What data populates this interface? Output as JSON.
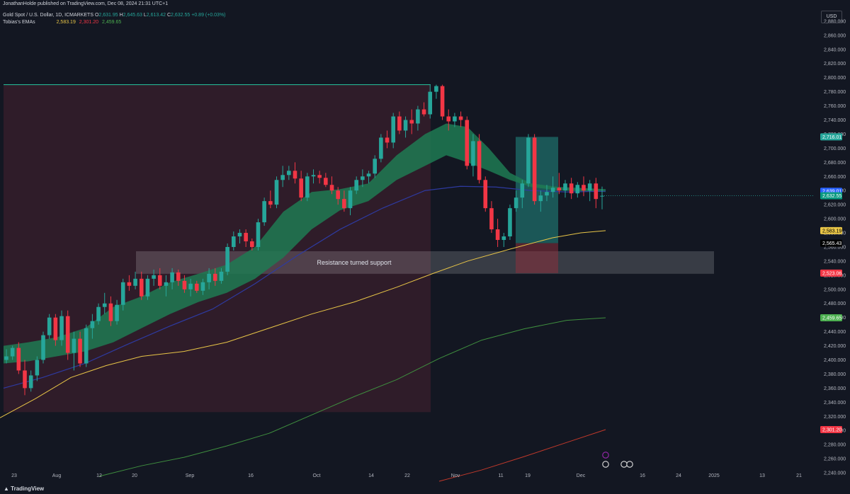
{
  "header": {
    "published_by": "JonathanHolde published on TradingView.com, Dec 08, 2024 21:31 UTC+1",
    "symbol_line": "Gold Spot / U.S. Dollar, 1D, ICMARKETS",
    "ohlc": {
      "o_label": "O",
      "o": "2,631.95",
      "h_label": "H",
      "h": "2,645.63",
      "l_label": "L",
      "l": "2,613.42",
      "c_label": "C",
      "c": "2,632.55",
      "change": "+0.89 (+0.03%)"
    },
    "indicator_name": "Tobias&#039;s EMAs",
    "indicator_values": [
      "2,583.19",
      "2,301.20",
      "2,459.65"
    ]
  },
  "currency_label": "USD",
  "footer_brand": "TradingView",
  "colors": {
    "background": "#131722",
    "up": "#26a69a",
    "down": "#f23645",
    "upper_band": "#1f7a52",
    "ema_blue": "#2a2e8a",
    "ema_yellow": "#e8c547",
    "ema_green": "#3f8f3f",
    "ema_red": "#c0392b",
    "range_pink": "#3a1f2c",
    "box_teal": "#26a69a",
    "box_red": "#8a2f3c",
    "label_green": "#089981"
  },
  "chart_data": {
    "type": "candlestick",
    "title": "Gold Spot / U.S. Dollar, 1D, ICMARKETS",
    "ylim": [
      2226,
      2905
    ],
    "y_ticks": [
      2240,
      2260,
      2280,
      2300,
      2320,
      2340,
      2360,
      2380,
      2400,
      2420,
      2440,
      2460,
      2480,
      2500,
      2520,
      2540,
      2560,
      2580,
      2600,
      2620,
      2640,
      2660,
      2680,
      2700,
      2720,
      2740,
      2760,
      2780,
      2800,
      2820,
      2840,
      2860,
      2880
    ],
    "x_ticks": [
      "23",
      "Aug",
      "12",
      "20",
      "Sep",
      "16",
      "Oct",
      "14",
      "22",
      "Nov",
      "11",
      "19",
      "Dec",
      "16",
      "24",
      "2025",
      "13",
      "21"
    ],
    "candles": [
      [
        2400,
        2415,
        2395,
        2405
      ],
      [
        2405,
        2420,
        2400,
        2417
      ],
      [
        2417,
        2425,
        2380,
        2385
      ],
      [
        2385,
        2400,
        2350,
        2360
      ],
      [
        2360,
        2385,
        2355,
        2378
      ],
      [
        2378,
        2405,
        2370,
        2400
      ],
      [
        2400,
        2440,
        2395,
        2435
      ],
      [
        2435,
        2465,
        2430,
        2460
      ],
      [
        2460,
        2465,
        2420,
        2428
      ],
      [
        2428,
        2470,
        2420,
        2462
      ],
      [
        2462,
        2470,
        2400,
        2410
      ],
      [
        2410,
        2440,
        2385,
        2430
      ],
      [
        2430,
        2440,
        2390,
        2395
      ],
      [
        2395,
        2450,
        2390,
        2445
      ],
      [
        2445,
        2465,
        2430,
        2455
      ],
      [
        2455,
        2480,
        2450,
        2475
      ],
      [
        2475,
        2495,
        2465,
        2480
      ],
      [
        2480,
        2490,
        2448,
        2455
      ],
      [
        2455,
        2485,
        2450,
        2478
      ],
      [
        2478,
        2515,
        2470,
        2510
      ],
      [
        2510,
        2520,
        2498,
        2505
      ],
      [
        2505,
        2525,
        2500,
        2515
      ],
      [
        2515,
        2525,
        2485,
        2490
      ],
      [
        2490,
        2520,
        2485,
        2515
      ],
      [
        2515,
        2528,
        2505,
        2520
      ],
      [
        2520,
        2530,
        2500,
        2505
      ],
      [
        2505,
        2520,
        2490,
        2510
      ],
      [
        2510,
        2530,
        2500,
        2524
      ],
      [
        2524,
        2528,
        2505,
        2512
      ],
      [
        2512,
        2520,
        2495,
        2500
      ],
      [
        2500,
        2515,
        2490,
        2508
      ],
      [
        2508,
        2512,
        2495,
        2498
      ],
      [
        2498,
        2515,
        2492,
        2510
      ],
      [
        2510,
        2530,
        2500,
        2522
      ],
      [
        2522,
        2530,
        2505,
        2512
      ],
      [
        2512,
        2530,
        2508,
        2525
      ],
      [
        2525,
        2565,
        2520,
        2560
      ],
      [
        2560,
        2582,
        2555,
        2575
      ],
      [
        2575,
        2585,
        2565,
        2580
      ],
      [
        2580,
        2585,
        2560,
        2568
      ],
      [
        2568,
        2572,
        2555,
        2560
      ],
      [
        2560,
        2600,
        2555,
        2595
      ],
      [
        2595,
        2630,
        2590,
        2625
      ],
      [
        2625,
        2640,
        2615,
        2620
      ],
      [
        2620,
        2660,
        2615,
        2655
      ],
      [
        2655,
        2675,
        2645,
        2662
      ],
      [
        2662,
        2675,
        2655,
        2668
      ],
      [
        2668,
        2680,
        2650,
        2657
      ],
      [
        2657,
        2668,
        2625,
        2630
      ],
      [
        2630,
        2665,
        2625,
        2660
      ],
      [
        2660,
        2670,
        2650,
        2662
      ],
      [
        2662,
        2668,
        2650,
        2658
      ],
      [
        2658,
        2665,
        2645,
        2648
      ],
      [
        2648,
        2660,
        2635,
        2640
      ],
      [
        2640,
        2645,
        2620,
        2628
      ],
      [
        2628,
        2640,
        2610,
        2615
      ],
      [
        2615,
        2645,
        2605,
        2640
      ],
      [
        2640,
        2660,
        2635,
        2655
      ],
      [
        2655,
        2670,
        2645,
        2660
      ],
      [
        2660,
        2668,
        2650,
        2664
      ],
      [
        2664,
        2690,
        2658,
        2685
      ],
      [
        2685,
        2720,
        2680,
        2715
      ],
      [
        2715,
        2725,
        2700,
        2708
      ],
      [
        2708,
        2750,
        2700,
        2745
      ],
      [
        2745,
        2752,
        2720,
        2725
      ],
      [
        2725,
        2745,
        2715,
        2740
      ],
      [
        2740,
        2755,
        2720,
        2735
      ],
      [
        2735,
        2760,
        2725,
        2755
      ],
      [
        2755,
        2765,
        2745,
        2748
      ],
      [
        2748,
        2790,
        2742,
        2780
      ],
      [
        2780,
        2790,
        2770,
        2788
      ],
      [
        2788,
        2790,
        2740,
        2745
      ],
      [
        2745,
        2755,
        2725,
        2738
      ],
      [
        2738,
        2750,
        2730,
        2745
      ],
      [
        2745,
        2752,
        2730,
        2740
      ],
      [
        2740,
        2745,
        2670,
        2675
      ],
      [
        2675,
        2720,
        2660,
        2710
      ],
      [
        2710,
        2720,
        2650,
        2655
      ],
      [
        2655,
        2660,
        2610,
        2615
      ],
      [
        2615,
        2625,
        2580,
        2585
      ],
      [
        2585,
        2600,
        2560,
        2570
      ],
      [
        2570,
        2580,
        2560,
        2575
      ],
      [
        2575,
        2620,
        2570,
        2615
      ],
      [
        2615,
        2640,
        2610,
        2630
      ],
      [
        2630,
        2655,
        2615,
        2650
      ],
      [
        2650,
        2720,
        2645,
        2715
      ],
      [
        2715,
        2720,
        2620,
        2625
      ],
      [
        2625,
        2640,
        2610,
        2633
      ],
      [
        2633,
        2648,
        2625,
        2638
      ],
      [
        2638,
        2660,
        2630,
        2644
      ],
      [
        2644,
        2665,
        2635,
        2640
      ],
      [
        2640,
        2655,
        2630,
        2650
      ],
      [
        2650,
        2658,
        2628,
        2636
      ],
      [
        2636,
        2652,
        2630,
        2648
      ],
      [
        2648,
        2660,
        2632,
        2640
      ],
      [
        2640,
        2655,
        2625,
        2650
      ],
      [
        2650,
        2658,
        2615,
        2628
      ],
      [
        2631.95,
        2645.63,
        2613.42,
        2632.55
      ]
    ],
    "ema_yellow": [
      [
        0,
        2318
      ],
      [
        50,
        2345
      ],
      [
        100,
        2375
      ],
      [
        150,
        2392
      ],
      [
        200,
        2405
      ],
      [
        260,
        2412
      ],
      [
        320,
        2425
      ],
      [
        380,
        2445
      ],
      [
        440,
        2465
      ],
      [
        500,
        2482
      ],
      [
        560,
        2503
      ],
      [
        610,
        2522
      ],
      [
        660,
        2540
      ],
      [
        720,
        2557
      ],
      [
        780,
        2573
      ],
      [
        820,
        2580
      ],
      [
        855,
        2583.19
      ]
    ],
    "ema_green": [
      [
        140,
        2235
      ],
      [
        200,
        2250
      ],
      [
        260,
        2262
      ],
      [
        320,
        2278
      ],
      [
        380,
        2296
      ],
      [
        440,
        2322
      ],
      [
        500,
        2348
      ],
      [
        560,
        2372
      ],
      [
        620,
        2402
      ],
      [
        680,
        2428
      ],
      [
        740,
        2444
      ],
      [
        800,
        2456
      ],
      [
        855,
        2459.65
      ]
    ],
    "ema_red": [
      [
        620,
        2228
      ],
      [
        680,
        2244
      ],
      [
        740,
        2263
      ],
      [
        800,
        2283
      ],
      [
        855,
        2301.2
      ]
    ],
    "ema_blue": [
      [
        5,
        2360
      ],
      [
        60,
        2375
      ],
      [
        120,
        2395
      ],
      [
        180,
        2422
      ],
      [
        240,
        2448
      ],
      [
        300,
        2472
      ],
      [
        360,
        2508
      ],
      [
        420,
        2548
      ],
      [
        480,
        2585
      ],
      [
        540,
        2615
      ],
      [
        600,
        2640
      ],
      [
        650,
        2646
      ],
      [
        700,
        2645
      ],
      [
        750,
        2640
      ],
      [
        800,
        2638
      ],
      [
        855,
        2639.01
      ]
    ],
    "band_top": [
      [
        5,
        2420
      ],
      [
        40,
        2425
      ],
      [
        80,
        2432
      ],
      [
        120,
        2445
      ],
      [
        160,
        2475
      ],
      [
        200,
        2490
      ],
      [
        240,
        2510
      ],
      [
        280,
        2522
      ],
      [
        320,
        2535
      ],
      [
        360,
        2560
      ],
      [
        400,
        2610
      ],
      [
        440,
        2638
      ],
      [
        480,
        2642
      ],
      [
        520,
        2650
      ],
      [
        560,
        2690
      ],
      [
        600,
        2720
      ],
      [
        630,
        2735
      ],
      [
        660,
        2730
      ],
      [
        690,
        2700
      ],
      [
        720,
        2665
      ],
      [
        750,
        2650
      ],
      [
        790,
        2645
      ],
      [
        855,
        2642
      ]
    ],
    "band_bottom": [
      [
        5,
        2395
      ],
      [
        40,
        2398
      ],
      [
        80,
        2405
      ],
      [
        120,
        2412
      ],
      [
        160,
        2425
      ],
      [
        200,
        2445
      ],
      [
        240,
        2465
      ],
      [
        280,
        2482
      ],
      [
        320,
        2495
      ],
      [
        360,
        2515
      ],
      [
        400,
        2545
      ],
      [
        440,
        2585
      ],
      [
        480,
        2612
      ],
      [
        520,
        2625
      ],
      [
        560,
        2655
      ],
      [
        600,
        2675
      ],
      [
        630,
        2690
      ],
      [
        660,
        2680
      ],
      [
        690,
        2668
      ],
      [
        720,
        2655
      ],
      [
        750,
        2645
      ],
      [
        790,
        2640
      ],
      [
        855,
        2638
      ]
    ],
    "horizontal_line": 2790,
    "support_zone": [
      2522,
      2554
    ],
    "annotation": "Resistance turned support",
    "price_labels": [
      {
        "value": "2,716.01",
        "color": "#26a69a"
      },
      {
        "value": "2,639.01",
        "color": "#2962ff"
      },
      {
        "value": "2,632.55",
        "color": "#089981"
      },
      {
        "value": "2,583.19",
        "color": "#e8c547"
      },
      {
        "value": "2,565.43",
        "color": "#000000"
      },
      {
        "value": "2,523.06",
        "color": "#f23645"
      },
      {
        "value": "2,459.65",
        "color": "#4caf50"
      },
      {
        "value": "2,301.20",
        "color": "#f23645"
      }
    ]
  }
}
